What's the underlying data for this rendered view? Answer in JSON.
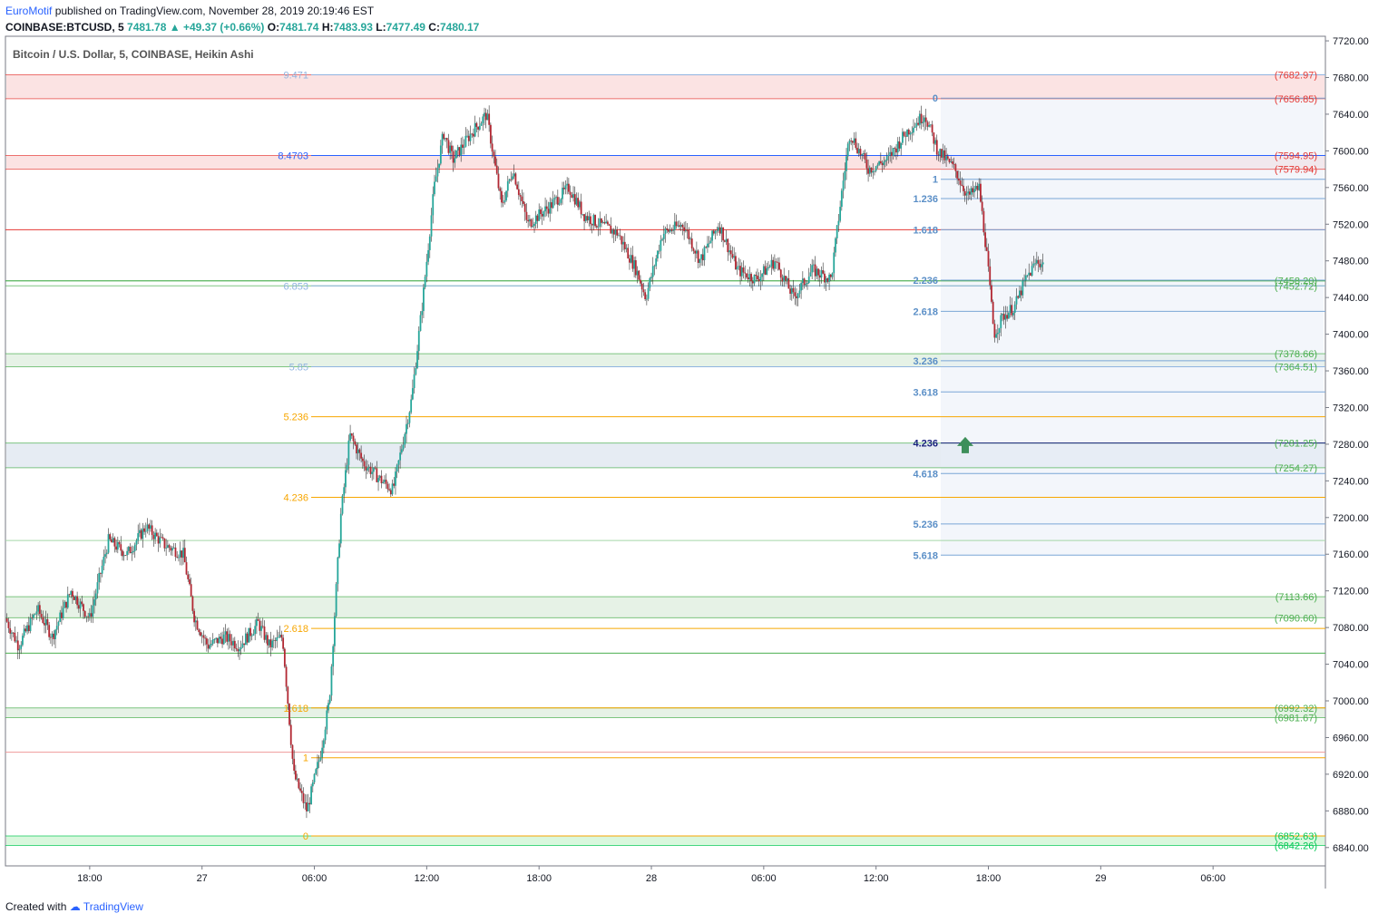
{
  "header": {
    "author": "EuroMotif",
    "published_text": "published on TradingView.com, November 28, 2019 20:19:46 EST"
  },
  "ohlc": {
    "symbol": "COINBASE:BTCUSD, 5",
    "last": "7481.78",
    "change": "+49.37 (+0.66%)",
    "o_label": "O:",
    "o": "7481.74",
    "h_label": "H:",
    "h": "7483.93",
    "l_label": "L:",
    "l": "7477.49",
    "c_label": "C:",
    "c": "7480.17"
  },
  "footer": {
    "created_with": "Created with",
    "brand": "TradingView"
  },
  "chart_data": {
    "type": "candlestick",
    "title": "Bitcoin / U.S. Dollar, 5, COINBASE, Heikin Ashi",
    "ylim": [
      6820,
      7725
    ],
    "y_ticks": [
      6840,
      6880,
      6920,
      6960,
      7000,
      7040,
      7080,
      7120,
      7160,
      7200,
      7240,
      7280,
      7320,
      7360,
      7400,
      7440,
      7480,
      7520,
      7560,
      7600,
      7640,
      7680,
      7720
    ],
    "x_ticks": [
      "18:00",
      "27",
      "06:00",
      "12:00",
      "18:00",
      "28",
      "06:00",
      "12:00",
      "18:00",
      "29",
      "06:00"
    ],
    "x_tick_hours": [
      18,
      24,
      30,
      36,
      42,
      48,
      54,
      60,
      66,
      72,
      78
    ],
    "x_range_hours": [
      13.5,
      84
    ],
    "colors": {
      "up": "#26a69a",
      "down": "#b22833",
      "fib_left": "#f7a600",
      "fib_blue": "#90b4e0",
      "res_red": "#e53935",
      "sup_green": "#4caf50",
      "ext_fill": "#e8eef8",
      "arrow": "#3d8f5a"
    },
    "price_path": [
      [
        13.5,
        7090
      ],
      [
        14.2,
        7060
      ],
      [
        15.2,
        7100
      ],
      [
        16,
        7070
      ],
      [
        17,
        7120
      ],
      [
        18,
        7090
      ],
      [
        19,
        7175
      ],
      [
        20,
        7160
      ],
      [
        21,
        7190
      ],
      [
        22,
        7170
      ],
      [
        23,
        7160
      ],
      [
        23.6,
        7090
      ],
      [
        24.3,
        7060
      ],
      [
        25.2,
        7070
      ],
      [
        26,
        7060
      ],
      [
        27,
        7085
      ],
      [
        27.6,
        7060
      ],
      [
        28.3,
        7070
      ],
      [
        28.9,
        6920
      ],
      [
        29.6,
        6880
      ],
      [
        30.3,
        6940
      ],
      [
        30.8,
        7000
      ],
      [
        31.4,
        7200
      ],
      [
        31.9,
        7290
      ],
      [
        32.6,
        7260
      ],
      [
        33.6,
        7240
      ],
      [
        34.2,
        7230
      ],
      [
        35.2,
        7330
      ],
      [
        35.8,
        7440
      ],
      [
        36.4,
        7560
      ],
      [
        36.9,
        7620
      ],
      [
        37.4,
        7590
      ],
      [
        38.4,
        7620
      ],
      [
        39.2,
        7640
      ],
      [
        40,
        7540
      ],
      [
        40.6,
        7580
      ],
      [
        41.4,
        7520
      ],
      [
        42.6,
        7540
      ],
      [
        43.6,
        7560
      ],
      [
        44.4,
        7530
      ],
      [
        45.2,
        7520
      ],
      [
        46.2,
        7510
      ],
      [
        47.2,
        7470
      ],
      [
        47.7,
        7440
      ],
      [
        48.6,
        7510
      ],
      [
        49.7,
        7520
      ],
      [
        50.6,
        7480
      ],
      [
        51.6,
        7520
      ],
      [
        52.6,
        7470
      ],
      [
        53.6,
        7460
      ],
      [
        54.6,
        7480
      ],
      [
        55.6,
        7440
      ],
      [
        56.6,
        7470
      ],
      [
        57.6,
        7460
      ],
      [
        58.2,
        7560
      ],
      [
        58.6,
        7620
      ],
      [
        59.6,
        7580
      ],
      [
        60.6,
        7590
      ],
      [
        61.6,
        7620
      ],
      [
        62.6,
        7640
      ],
      [
        63.3,
        7600
      ],
      [
        64.2,
        7580
      ],
      [
        64.9,
        7550
      ],
      [
        65.5,
        7560
      ],
      [
        65.9,
        7490
      ],
      [
        66.3,
        7400
      ],
      [
        66.8,
        7420
      ],
      [
        67.4,
        7430
      ],
      [
        68,
        7460
      ],
      [
        68.6,
        7480
      ],
      [
        69,
        7475
      ]
    ],
    "left_fib": [
      {
        "label": "0",
        "price": 6852.63
      },
      {
        "label": "1",
        "price": 6938
      },
      {
        "label": "1.618",
        "price": 6992.32
      },
      {
        "label": "2.618",
        "price": 7079
      },
      {
        "label": "4.236",
        "price": 7222
      },
      {
        "label": "5.236",
        "price": 7310
      },
      {
        "label": "5.85",
        "price": 7364.51
      },
      {
        "label": "6.853",
        "price": 7452.72
      },
      {
        "label": "8.4703",
        "price": 7594.95
      },
      {
        "label": "9.471",
        "price": 7682.97
      }
    ],
    "right_fib": [
      {
        "label": "0",
        "price": 7657.5
      },
      {
        "label": "1",
        "price": 7569
      },
      {
        "label": "1.236",
        "price": 7548
      },
      {
        "label": "1.618",
        "price": 7514
      },
      {
        "label": "2.236",
        "price": 7459
      },
      {
        "label": "2.618",
        "price": 7425
      },
      {
        "label": "3.236",
        "price": 7371
      },
      {
        "label": "3.618",
        "price": 7337
      },
      {
        "label": "4.236",
        "price": 7281.25
      },
      {
        "label": "4.618",
        "price": 7248
      },
      {
        "label": "5.236",
        "price": 7193
      },
      {
        "label": "5.618",
        "price": 7159
      }
    ],
    "price_labels": [
      {
        "text": "(7682.97)",
        "price": 7682.97,
        "color": "#e53935"
      },
      {
        "text": "(7656.85)",
        "price": 7656.85,
        "color": "#e53935"
      },
      {
        "text": "(7594.95)",
        "price": 7594.95,
        "color": "#e53935"
      },
      {
        "text": "(7579.94)",
        "price": 7579.94,
        "color": "#e53935"
      },
      {
        "text": "(7458.20)",
        "price": 7458.2,
        "color": "#4caf50"
      },
      {
        "text": "(7452.72)",
        "price": 7452.72,
        "color": "#4caf50"
      },
      {
        "text": "(7378.66)",
        "price": 7378.66,
        "color": "#4caf50"
      },
      {
        "text": "(7364.51)",
        "price": 7364.51,
        "color": "#4caf50"
      },
      {
        "text": "(7281.25)",
        "price": 7281.25,
        "color": "#4caf50"
      },
      {
        "text": "(7254.27)",
        "price": 7254.27,
        "color": "#4caf50"
      },
      {
        "text": "(7113.66)",
        "price": 7113.66,
        "color": "#4caf50"
      },
      {
        "text": "(7090.60)",
        "price": 7090.6,
        "color": "#4caf50"
      },
      {
        "text": "(6992.32)",
        "price": 6992.32,
        "color": "#4caf50"
      },
      {
        "text": "(6981.67)",
        "price": 6981.67,
        "color": "#4caf50"
      },
      {
        "text": "(6852.63)",
        "price": 6852.63,
        "color": "#00c853"
      },
      {
        "text": "(6842.26)",
        "price": 6842.26,
        "color": "#00c853"
      }
    ],
    "zones": [
      {
        "from": 7656.85,
        "to": 7682.97,
        "color": "#fbe3e3"
      },
      {
        "from": 7579.94,
        "to": 7594.95,
        "color": "#fbe3e3"
      },
      {
        "from": 7364.51,
        "to": 7378.66,
        "color": "#e6f2e6"
      },
      {
        "from": 7254.27,
        "to": 7281.25,
        "color": "#e6ecf3"
      },
      {
        "from": 7090.6,
        "to": 7113.66,
        "color": "#e6f2e6"
      },
      {
        "from": 6981.67,
        "to": 6992.32,
        "color": "#e6f2e6"
      },
      {
        "from": 6842.26,
        "to": 6852.63,
        "color": "#d9f7dd"
      }
    ],
    "extra_lines": [
      {
        "price": 7514,
        "color": "#e53935"
      },
      {
        "price": 7458.2,
        "color": "#4caf50"
      },
      {
        "price": 7175,
        "color": "#a5d6a7"
      },
      {
        "price": 7052,
        "color": "#4caf50"
      },
      {
        "price": 6944,
        "color": "#ef9a9a"
      }
    ],
    "arrow_price": 7280
  }
}
